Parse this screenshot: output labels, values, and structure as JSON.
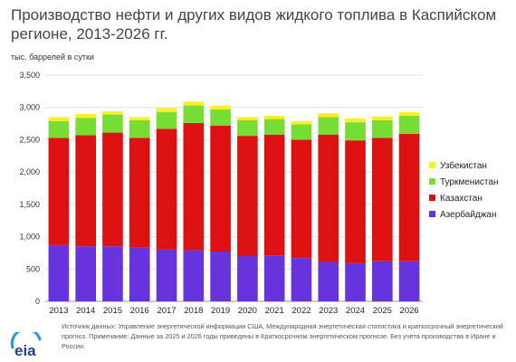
{
  "title": "Производство нефти и других видов жидкого топлива в Каспийском регионе, 2013-2026 гг.",
  "unit_label": "тыс. баррелей в сутки",
  "source_text": "Источник данных: Управление энергетической информации США, Международная энергетическая статистика и краткосрочный энергетический прогноз. Примечание: Данные за 2025 и 2026 годы приведены в Краткосрочном энергетическом прогнозе. Без учета производства в Иране и России.",
  "logo_text": "eia",
  "chart_data": {
    "type": "bar",
    "stacked": true,
    "categories": [
      "2013",
      "2014",
      "2015",
      "2016",
      "2017",
      "2018",
      "2019",
      "2020",
      "2021",
      "2022",
      "2023",
      "2024",
      "2025",
      "2026"
    ],
    "ylim": [
      0,
      3500
    ],
    "yticks": [
      0,
      500,
      1000,
      1500,
      2000,
      2500,
      3000,
      3500
    ],
    "ytick_labels": [
      "0",
      "500",
      "1,000",
      "1,500",
      "2,000",
      "2,500",
      "3,000",
      "3,500"
    ],
    "legend_position": "right",
    "series": [
      {
        "name": "Азербайджан",
        "color": "#6633dd",
        "values": [
          870,
          850,
          850,
          830,
          800,
          790,
          770,
          700,
          710,
          670,
          610,
          590,
          620,
          620
        ]
      },
      {
        "name": "Казахстан",
        "color": "#dd1111",
        "values": [
          1660,
          1720,
          1760,
          1700,
          1870,
          1970,
          1950,
          1860,
          1870,
          1830,
          1970,
          1900,
          1910,
          1970
        ]
      },
      {
        "name": "Туркменистан",
        "color": "#77dd33",
        "values": [
          260,
          270,
          280,
          270,
          260,
          270,
          250,
          240,
          240,
          240,
          270,
          280,
          270,
          280
        ]
      },
      {
        "name": "Узбекистан",
        "color": "#ffee22",
        "values": [
          60,
          60,
          50,
          50,
          60,
          60,
          60,
          50,
          50,
          50,
          60,
          60,
          60,
          60
        ]
      }
    ]
  }
}
